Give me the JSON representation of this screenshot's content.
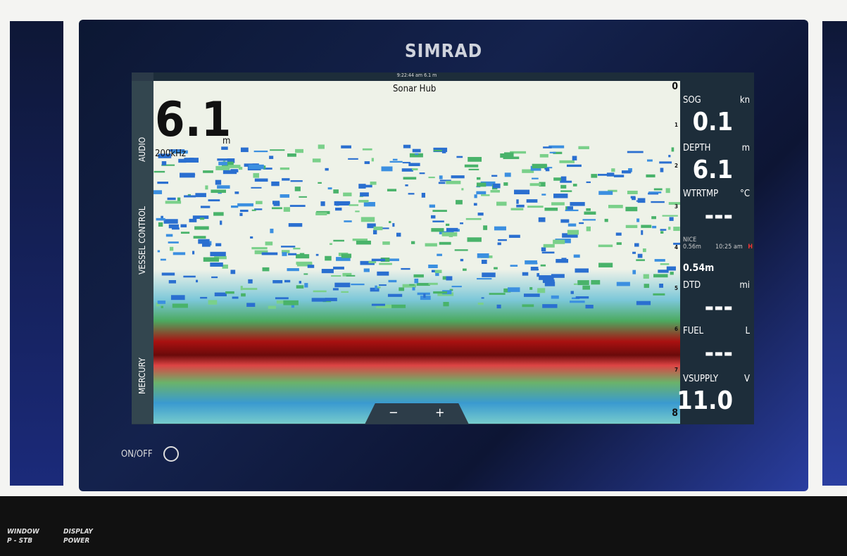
{
  "bezel": {
    "brand": "SIMRAD",
    "power_button": "ON/OFF"
  },
  "status_bar": {
    "time": "9:22:44 am",
    "depth": "6.1 m"
  },
  "sonar": {
    "title": "Sonar Hub",
    "depth": "6.1",
    "depth_unit": "m",
    "frequency": "200kHz",
    "scale": [
      "0",
      "1",
      "2",
      "3",
      "4",
      "5",
      "6",
      "7",
      "8"
    ],
    "zoom": [
      "−",
      "+"
    ]
  },
  "side_tabs": [
    "AUDIO",
    "VESSEL CONTROL",
    "MERCURY"
  ],
  "instruments": [
    {
      "label": "SOG",
      "unit": "kn",
      "value": "0.1"
    },
    {
      "label": "DEPTH",
      "unit": "m",
      "value": "6.1"
    },
    {
      "label": "WTRTMP",
      "unit": "°C",
      "value": "---"
    },
    {
      "label": "DTD",
      "unit": "mi",
      "value": "---"
    },
    {
      "label": "FUEL",
      "unit": "L",
      "value": "---"
    },
    {
      "label": "VSUPPLY",
      "unit": "V",
      "value": "11.0"
    }
  ],
  "tide": {
    "station": "NICE",
    "height": "0.56m",
    "time": "10:25 am",
    "marker": "H",
    "current": "0.54m"
  },
  "console": {
    "labels": [
      "WINDOW",
      "P - STB",
      "DISPLAY",
      "POWER"
    ]
  }
}
